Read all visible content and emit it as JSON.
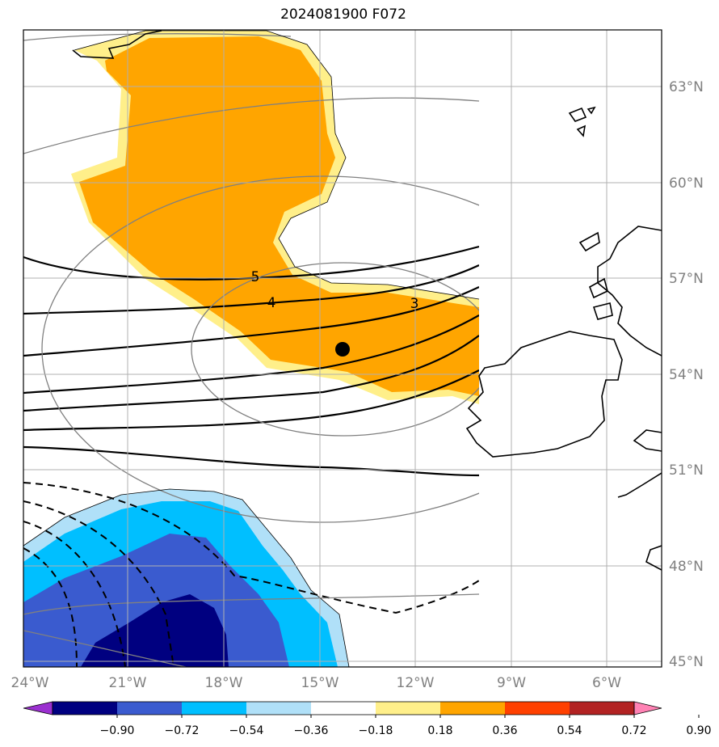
{
  "title": "2024081900 F072",
  "lat_labels": [
    "63°N",
    "60°N",
    "57°N",
    "54°N",
    "51°N",
    "48°N",
    "45°N"
  ],
  "lon_labels": [
    "24°W",
    "21°W",
    "18°W",
    "15°W",
    "12°W",
    "9°W",
    "6°W"
  ],
  "contour_labels": [
    "5",
    "4",
    "3"
  ],
  "colorbar": {
    "ticks": [
      "−0.90",
      "−0.72",
      "−0.54",
      "−0.36",
      "−0.18",
      "0.18",
      "0.36",
      "0.54",
      "0.72",
      "0.90"
    ],
    "colors": [
      "#9b30d0",
      "#000080",
      "#3a5bcf",
      "#00bfff",
      "#b0e0f8",
      "#ffffff",
      "#ffef8a",
      "#ffa500",
      "#ff4000",
      "#b22222",
      "#ff82b4"
    ]
  },
  "colors": {
    "positive_fill": "#ffa500",
    "positive_edge": "#ffef8a",
    "neg_light": "#b0e0f8",
    "neg_mid": "#00bfff",
    "neg_deep": "#3a5bcf",
    "neg_core": "#000080"
  },
  "marker": {
    "type": "black-dot"
  }
}
